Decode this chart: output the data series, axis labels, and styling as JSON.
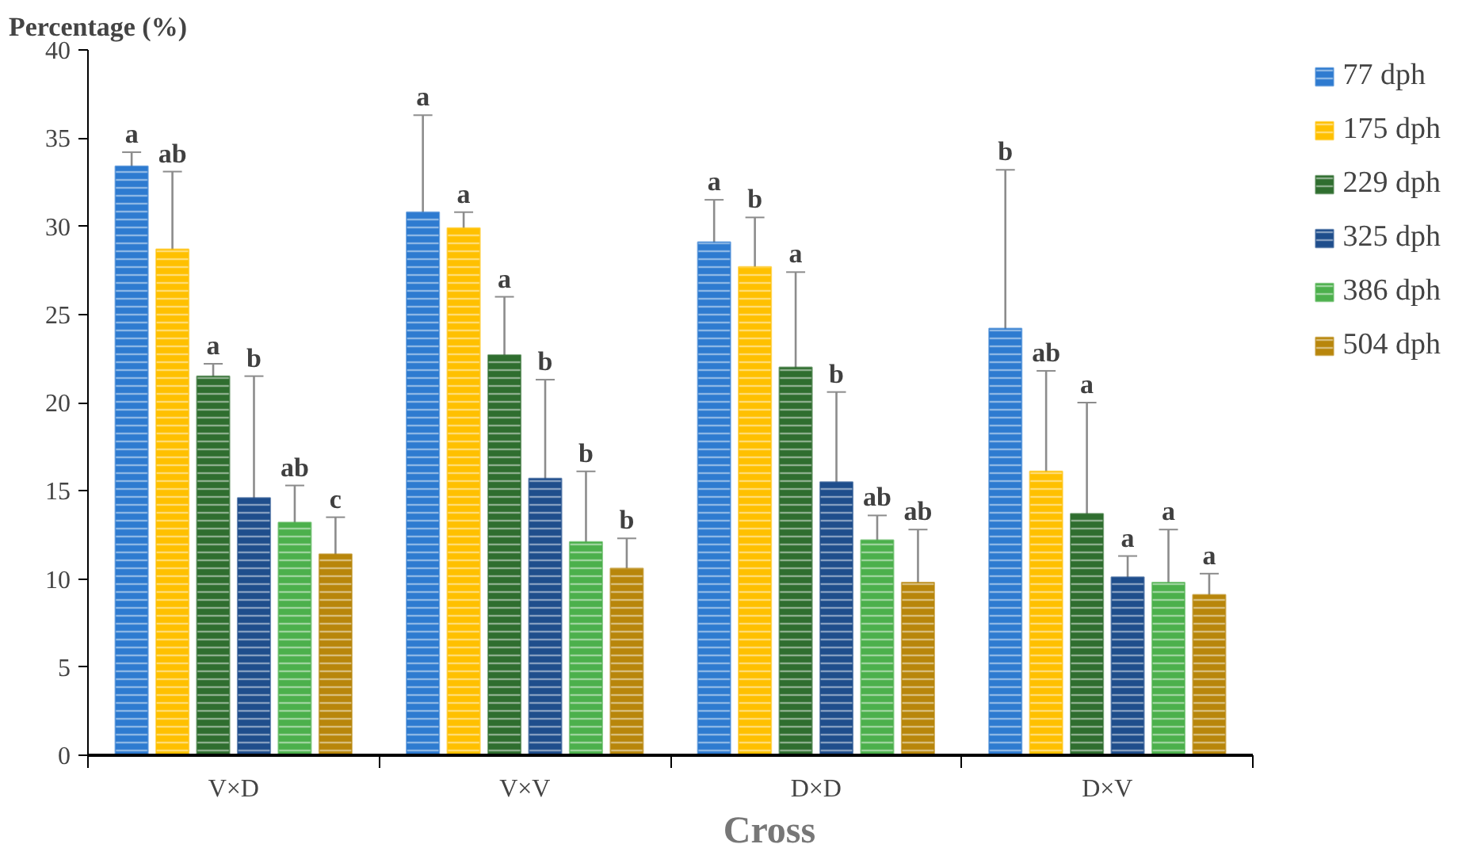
{
  "chart_data": {
    "type": "bar",
    "xlabel": "Cross",
    "ylabel": "Percentage (%)",
    "categories": [
      "V×D",
      "V×V",
      "D×D",
      "D×V"
    ],
    "series": [
      {
        "name": "77 dph",
        "color": "#2e7bd0",
        "values": [
          33.4,
          30.8,
          29.1,
          24.2
        ],
        "errors": [
          [
            32.3,
            34.2
          ],
          [
            29.8,
            36.3
          ],
          [
            28.1,
            31.5
          ],
          [
            23.1,
            33.2
          ]
        ]
      },
      {
        "name": "175 dph",
        "color": "#ffc000",
        "values": [
          28.7,
          29.9,
          27.7,
          16.1
        ],
        "errors": [
          [
            27.8,
            33.1
          ],
          [
            28.9,
            30.8
          ],
          [
            26.6,
            30.5
          ],
          [
            15.1,
            21.8
          ]
        ]
      },
      {
        "name": "229 dph",
        "color": "#2f6e2f",
        "values": [
          21.5,
          22.7,
          22.0,
          13.7
        ],
        "errors": [
          [
            20.5,
            22.2
          ],
          [
            21.7,
            26.0
          ],
          [
            21.1,
            27.4
          ],
          [
            12.7,
            20.0
          ]
        ]
      },
      {
        "name": "325 dph",
        "color": "#1f4e8c",
        "values": [
          14.6,
          15.7,
          15.5,
          10.1
        ],
        "errors": [
          [
            13.5,
            21.5
          ],
          [
            14.7,
            21.3
          ],
          [
            14.4,
            20.6
          ],
          [
            9.2,
            11.3
          ]
        ]
      },
      {
        "name": "386 dph",
        "color": "#4cb04c",
        "values": [
          13.2,
          12.1,
          12.2,
          9.8
        ],
        "errors": [
          [
            12.1,
            15.3
          ],
          [
            11.1,
            16.1
          ],
          [
            11.1,
            13.6
          ],
          [
            8.8,
            12.8
          ]
        ]
      },
      {
        "name": "504 dph",
        "color": "#b8860b",
        "values": [
          11.4,
          10.6,
          9.8,
          9.1
        ],
        "errors": [
          [
            10.3,
            13.5
          ],
          [
            9.5,
            12.3
          ],
          [
            8.7,
            12.8
          ],
          [
            8.1,
            10.3
          ]
        ]
      }
    ],
    "annotations": [
      "a",
      "ab",
      "a",
      "b",
      "ab",
      "c",
      "a",
      "a",
      "a",
      "b",
      "b",
      "b",
      "a",
      "b",
      "a",
      "b",
      "ab",
      "ab",
      "b",
      "ab",
      "a",
      "a",
      "a",
      "a"
    ],
    "ylim": [
      0,
      40
    ],
    "yticks": [
      0,
      5,
      10,
      15,
      20,
      25,
      30,
      35,
      40
    ],
    "grid": false,
    "legend": "right"
  }
}
